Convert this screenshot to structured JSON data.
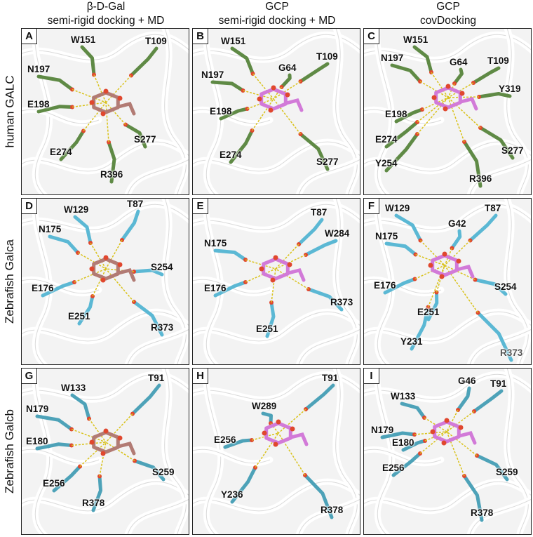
{
  "columns": [
    {
      "line1": "β-D-Gal",
      "line2": "semi-rigid docking + MD"
    },
    {
      "line1": "GCP",
      "line2": "semi-rigid docking + MD"
    },
    {
      "line1": "GCP",
      "line2": "covDocking"
    }
  ],
  "rows": [
    "human GALC",
    "Zebrafish Galca",
    "Zebrafish Galcb"
  ],
  "colors": {
    "human": "#5f8a45",
    "zebrafish_a": "#5bb8d4",
    "zebrafish_b": "#4da2b8",
    "gal_ligand": "#b27b74",
    "gcp_ligand": "#d27ad8",
    "hbond": "#d9c21a",
    "oxygen": "#e0472e",
    "nitrogen": "#2a3fd6"
  },
  "panels": [
    {
      "letter": "A",
      "residues": [
        "W151",
        "T109",
        "N197",
        "E198",
        "S277",
        "E274",
        "R396"
      ]
    },
    {
      "letter": "B",
      "residues": [
        "W151",
        "T109",
        "G64",
        "N197",
        "E198",
        "E274",
        "S277"
      ]
    },
    {
      "letter": "C",
      "residues": [
        "W151",
        "N197",
        "G64",
        "T109",
        "Y319",
        "E198",
        "E274",
        "S277",
        "Y254",
        "R396"
      ]
    },
    {
      "letter": "D",
      "residues": [
        "W129",
        "T87",
        "N175",
        "S254",
        "E176",
        "E251",
        "R373"
      ]
    },
    {
      "letter": "E",
      "residues": [
        "T87",
        "N175",
        "W284",
        "E176",
        "R373",
        "E251"
      ]
    },
    {
      "letter": "F",
      "residues": [
        "W129",
        "T87",
        "G42",
        "N175",
        "E176",
        "S254",
        "E251",
        "Y231",
        "R373"
      ]
    },
    {
      "letter": "G",
      "residues": [
        "W133",
        "T91",
        "N179",
        "E180",
        "S259",
        "E256",
        "R378"
      ]
    },
    {
      "letter": "H",
      "residues": [
        "T91",
        "W289",
        "E256",
        "Y236",
        "R378"
      ]
    },
    {
      "letter": "I",
      "residues": [
        "W133",
        "G46",
        "T91",
        "N179",
        "E180",
        "E256",
        "S259",
        "R378"
      ]
    }
  ]
}
